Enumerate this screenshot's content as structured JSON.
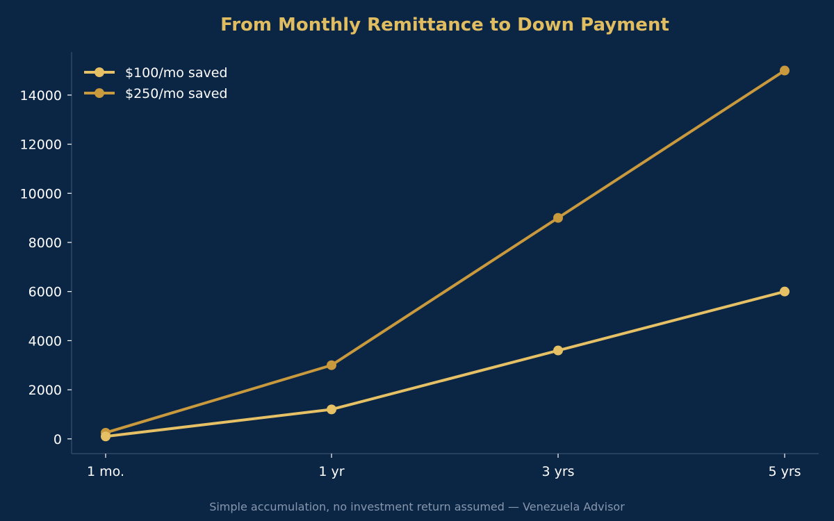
{
  "chart_data": {
    "type": "line",
    "title": "From Monthly Remittance to Down Payment",
    "footer": "Simple accumulation, no investment return assumed — Venezuela Advisor",
    "categories": [
      "1 mo.",
      "1 yr",
      "3 yrs",
      "5 yrs"
    ],
    "yticks": [
      "0",
      "2000",
      "4000",
      "6000",
      "8000",
      "10000",
      "12000",
      "14000"
    ],
    "ylim": [
      -600,
      15750
    ],
    "legend_position": "top-left",
    "grid": false,
    "series": [
      {
        "name": "$100/mo saved",
        "values": [
          100,
          1200,
          3600,
          6000
        ],
        "color": "#e6c065"
      },
      {
        "name": "$250/mo saved",
        "values": [
          250,
          3000,
          9000,
          15000
        ],
        "color": "#c9993d"
      }
    ],
    "colors": {
      "background": "#0b2545",
      "title": "#e0bd60",
      "axis": "#2f4866",
      "text": "#ffffff",
      "footer": "#8797ad"
    }
  }
}
